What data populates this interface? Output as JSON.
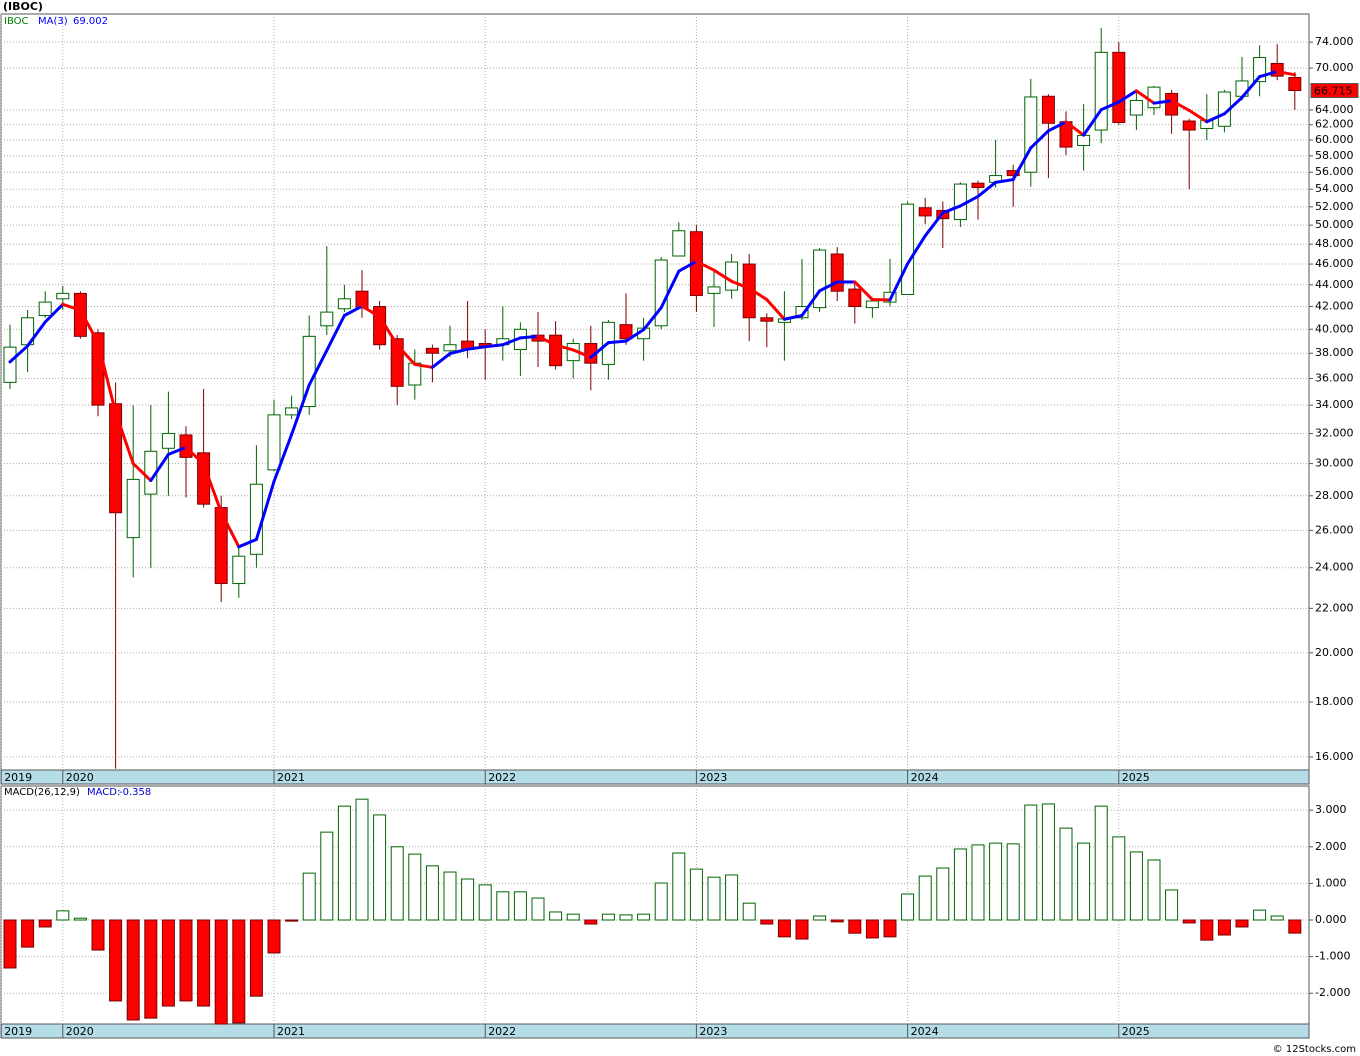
{
  "title": "(IBOC)",
  "watermark": "© 12Stocks.com",
  "chart_data": [
    {
      "type": "candlestick",
      "symbol": "IBOC",
      "symbol_color": "#008000",
      "open": [
        35.7,
        38.7,
        41.2,
        42.7,
        43.2,
        39.7,
        34.1,
        25.6,
        28.1,
        31.0,
        31.9,
        30.7,
        27.3,
        23.2,
        24.7,
        29.6,
        33.3,
        33.9,
        40.3,
        41.8,
        43.4,
        42.0,
        39.2,
        35.5,
        38.4,
        38.2,
        39.0,
        38.8,
        38.7,
        38.3,
        39.5,
        39.5,
        37.4,
        38.8,
        37.1,
        40.4,
        39.2,
        40.3,
        46.8,
        49.3,
        43.2,
        43.5,
        46.0,
        41.0,
        40.6,
        41.0,
        41.9,
        47.0,
        43.6,
        41.9,
        42.4,
        43.1,
        51.9,
        51.6,
        50.6,
        54.7,
        54.8,
        56.2,
        56.0,
        65.9,
        62.4,
        59.3,
        61.3,
        72.4,
        63.3,
        64.3,
        66.3,
        62.5,
        61.5,
        61.8,
        65.9,
        68.0,
        70.7,
        68.6
      ],
      "high": [
        40.4,
        41.7,
        43.4,
        43.9,
        43.4,
        40.0,
        35.7,
        34.0,
        34.0,
        35.0,
        32.5,
        35.2,
        28.0,
        25.2,
        31.2,
        34.4,
        34.7,
        41.2,
        47.8,
        44.0,
        45.4,
        42.5,
        39.5,
        38.3,
        38.7,
        40.3,
        42.5,
        40.0,
        42.0,
        40.6,
        41.5,
        40.7,
        39.2,
        40.3,
        40.8,
        43.2,
        41.0,
        46.7,
        50.3,
        50.0,
        45.4,
        47.0,
        47.0,
        41.4,
        43.4,
        46.5,
        47.6,
        47.7,
        44.4,
        42.7,
        46.5,
        52.6,
        53.0,
        52.6,
        54.8,
        55.0,
        60.0,
        56.9,
        68.4,
        66.2,
        63.8,
        64.8,
        76.3,
        74.0,
        66.5,
        67.4,
        66.8,
        62.8,
        66.2,
        66.8,
        71.7,
        73.5,
        73.7,
        69.4
      ],
      "low": [
        35.2,
        36.5,
        41.0,
        41.7,
        39.2,
        33.2,
        15.6,
        23.5,
        24.0,
        28.0,
        27.9,
        27.3,
        22.3,
        22.5,
        24.0,
        29.5,
        33.0,
        33.3,
        39.5,
        41.5,
        41.0,
        38.3,
        34.0,
        34.4,
        35.7,
        37.7,
        37.6,
        35.9,
        37.4,
        36.2,
        36.9,
        36.7,
        36.0,
        35.1,
        35.9,
        38.7,
        37.4,
        40.0,
        46.8,
        41.5,
        40.2,
        42.7,
        39.0,
        38.5,
        37.4,
        40.8,
        41.5,
        42.5,
        40.5,
        41.0,
        42.0,
        43.1,
        50.1,
        47.6,
        49.8,
        50.6,
        54.2,
        52.0,
        54.3,
        55.3,
        58.1,
        56.2,
        59.6,
        62.0,
        61.3,
        63.3,
        60.8,
        54.0,
        60.0,
        61.0,
        65.3,
        65.9,
        68.2,
        64.0
      ],
      "close": [
        38.5,
        41.0,
        42.4,
        43.2,
        39.4,
        34.0,
        27.0,
        29.0,
        30.8,
        32.0,
        30.4,
        27.5,
        23.2,
        24.6,
        28.7,
        33.3,
        33.8,
        39.4,
        41.5,
        42.7,
        41.9,
        38.7,
        35.4,
        37.2,
        38.0,
        38.7,
        38.3,
        38.6,
        39.2,
        40.0,
        39.0,
        37.0,
        38.8,
        37.2,
        40.6,
        39.2,
        40.1,
        46.4,
        49.4,
        43.0,
        43.8,
        46.2,
        41.0,
        40.7,
        40.9,
        42.0,
        47.4,
        43.4,
        42.0,
        42.5,
        43.3,
        52.3,
        51.0,
        50.7,
        54.6,
        54.2,
        55.6,
        55.6,
        65.8,
        62.2,
        59.1,
        60.6,
        72.4,
        62.3,
        65.3,
        67.2,
        63.3,
        61.3,
        62.6,
        66.5,
        68.1,
        71.6,
        68.8,
        66.715
      ],
      "up_color": "#ffffff",
      "up_outline": "#006400",
      "down_color": "#ff0000",
      "down_outline": "#7a0000",
      "ma": {
        "name": "MA(3)",
        "up_color": "#0000ff",
        "down_color": "#ff0000",
        "values": [
          37.3,
          38.6,
          40.63,
          42.2,
          41.67,
          38.87,
          33.47,
          30.0,
          28.93,
          30.6,
          31.07,
          29.97,
          27.03,
          25.1,
          25.5,
          28.87,
          31.93,
          35.5,
          38.23,
          41.2,
          42.03,
          41.1,
          38.67,
          37.1,
          36.87,
          37.97,
          38.33,
          38.53,
          38.7,
          39.27,
          39.4,
          38.67,
          38.27,
          37.67,
          38.87,
          39.0,
          39.97,
          41.9,
          45.3,
          46.27,
          45.4,
          44.33,
          43.67,
          42.63,
          40.87,
          41.2,
          43.43,
          44.27,
          44.27,
          42.63,
          42.6,
          46.03,
          48.87,
          51.33,
          52.1,
          53.17,
          54.8,
          55.13,
          59.0,
          61.2,
          62.37,
          60.63,
          64.03,
          65.1,
          66.67,
          64.93,
          65.27,
          63.93,
          62.4,
          63.47,
          65.73,
          68.73,
          69.5,
          69.002
        ]
      },
      "log_scale": true,
      "grid": true,
      "ylim": [
        15.56,
        78.6
      ],
      "yticks": [
        {
          "value": 16,
          "label": "16.000"
        },
        {
          "value": 18,
          "label": "18.000"
        },
        {
          "value": 20,
          "label": "20.000"
        },
        {
          "value": 22,
          "label": "22.000"
        },
        {
          "value": 24,
          "label": "24.000"
        },
        {
          "value": 26,
          "label": "26.000"
        },
        {
          "value": 28,
          "label": "28.000"
        },
        {
          "value": 30,
          "label": "30.000"
        },
        {
          "value": 32,
          "label": "32.000"
        },
        {
          "value": 34,
          "label": "34.000"
        },
        {
          "value": 36,
          "label": "36.000"
        },
        {
          "value": 38,
          "label": "38.000"
        },
        {
          "value": 40,
          "label": "40.000"
        },
        {
          "value": 42,
          "label": "42.000"
        },
        {
          "value": 44,
          "label": "44.000"
        },
        {
          "value": 46,
          "label": "46.000"
        },
        {
          "value": 48,
          "label": "48.000"
        },
        {
          "value": 50,
          "label": "50.000"
        },
        {
          "value": 52,
          "label": "52.000"
        },
        {
          "value": 54,
          "label": "54.000"
        },
        {
          "value": 56,
          "label": "56.000"
        },
        {
          "value": 58,
          "label": "58.000"
        },
        {
          "value": 60,
          "label": "60.000"
        },
        {
          "value": 62,
          "label": "62.000"
        },
        {
          "value": 64,
          "label": "64.000"
        },
        {
          "value": 70,
          "label": "70.000"
        },
        {
          "value": 74,
          "label": "74.000"
        }
      ],
      "xticks": [
        {
          "value": -0.5,
          "label": "2019"
        },
        {
          "value": 3,
          "label": "2020"
        },
        {
          "value": 15,
          "label": "2021"
        },
        {
          "value": 27,
          "label": "2022"
        },
        {
          "value": 39,
          "label": "2023"
        },
        {
          "value": 51,
          "label": "2024"
        },
        {
          "value": 63,
          "label": "2025"
        }
      ]
    },
    {
      "type": "bar",
      "name": "MACD(26,12,9)",
      "value_name": "MACD:",
      "pos_color": "#ffffff",
      "pos_outline": "#006400",
      "neg_color": "#ff0000",
      "neg_outline": "#7a0000",
      "values": [
        -1.31,
        -0.74,
        -0.19,
        0.25,
        0.05,
        -0.82,
        -2.21,
        -2.73,
        -2.68,
        -2.35,
        -2.21,
        -2.35,
        -2.84,
        -2.81,
        -2.08,
        -0.9,
        -0.03,
        1.28,
        2.4,
        3.11,
        3.3,
        2.87,
        2.0,
        1.8,
        1.48,
        1.31,
        1.12,
        0.96,
        0.77,
        0.77,
        0.6,
        0.22,
        0.16,
        -0.11,
        0.16,
        0.14,
        0.16,
        1.01,
        1.83,
        1.39,
        1.17,
        1.23,
        0.46,
        -0.11,
        -0.46,
        -0.52,
        0.11,
        -0.05,
        -0.36,
        -0.49,
        -0.46,
        0.71,
        1.2,
        1.42,
        1.94,
        2.05,
        2.1,
        2.08,
        3.14,
        3.17,
        2.51,
        2.1,
        3.11,
        2.27,
        1.86,
        1.64,
        0.82,
        -0.08,
        -0.55,
        -0.41,
        -0.19,
        0.27,
        0.11,
        -0.358
      ],
      "grid": true,
      "ylim": [
        -2.84,
        3.66
      ],
      "yticks": [
        {
          "value": -2,
          "label": "-2.000"
        },
        {
          "value": -1,
          "label": "-1.000"
        },
        {
          "value": 0,
          "label": "0.000"
        },
        {
          "value": 1,
          "label": "1.000"
        },
        {
          "value": 2,
          "label": "2.000"
        },
        {
          "value": 3,
          "label": "3.000"
        }
      ],
      "xticks": [
        {
          "value": -0.5,
          "label": "2019"
        },
        {
          "value": 3,
          "label": "2020"
        },
        {
          "value": 15,
          "label": "2021"
        },
        {
          "value": 27,
          "label": "2022"
        },
        {
          "value": 39,
          "label": "2023"
        },
        {
          "value": 51,
          "label": "2024"
        },
        {
          "value": 63,
          "label": "2025"
        }
      ]
    }
  ]
}
